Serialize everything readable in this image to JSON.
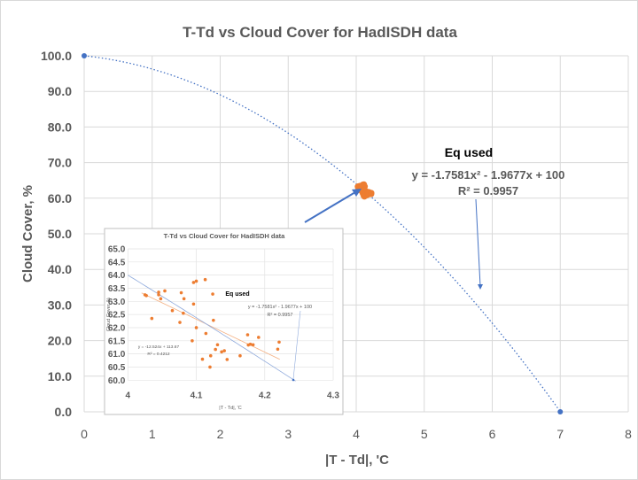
{
  "chart_data": [
    {
      "type": "scatter",
      "title": "T-Td vs Cloud Cover for HadISDH data",
      "xlabel": "|T - Td|, 'C",
      "ylabel": "Cloud Cover, %",
      "xlim": [
        0,
        8
      ],
      "ylim": [
        0,
        100
      ],
      "x_ticks": [
        "0",
        "1",
        "2",
        "3",
        "4",
        "5",
        "6",
        "7",
        "8"
      ],
      "y_ticks": [
        "0.0",
        "10.0",
        "20.0",
        "30.0",
        "40.0",
        "50.0",
        "60.0",
        "70.0",
        "80.0",
        "90.0",
        "100.0"
      ],
      "grid": true,
      "anchor_points": {
        "x": [
          0,
          7
        ],
        "y": [
          100,
          0
        ],
        "color": "#4472c4"
      },
      "trendline": {
        "type": "polynomial",
        "coefficients": [
          -1.7581,
          -1.9677,
          100
        ],
        "equation": "y = -1.7581x² - 1.9677x + 100",
        "r2": "R² = 0.9957",
        "color": "#4472c4",
        "style": "dotted"
      },
      "annotation": "Eq used",
      "point_color": "#ed7d31"
    },
    {
      "type": "scatter",
      "title": "T-Td vs Cloud Cover for HadISDH data",
      "xlabel": "|T - Td|, 'C",
      "ylabel": "Cloud Cover, %",
      "xlim": [
        4,
        4.3
      ],
      "ylim": [
        60,
        65
      ],
      "x_ticks": [
        "4",
        "4.1",
        "4.2",
        "4.3"
      ],
      "y_ticks": [
        "60.0",
        "60.5",
        "61.0",
        "61.5",
        "62.0",
        "62.5",
        "63.0",
        "63.5",
        "64.0",
        "64.5",
        "65.0"
      ],
      "grid": true,
      "annotation": "Eq used",
      "poly_equation": "y = -1.7581x² - 1.9677x + 100",
      "poly_r2": "R² = 0.9957",
      "linear_trendline": {
        "slope": -12.524,
        "intercept": 113.67,
        "equation": "y = -12.524x + 113.67",
        "r2": "R² = 0.4212",
        "color": "#f4b183"
      },
      "point_color": "#ed7d31",
      "points": {
        "x": [
          4.025,
          4.027,
          4.035,
          4.045,
          4.045,
          4.048,
          4.054,
          4.065,
          4.076,
          4.078,
          4.081,
          4.082,
          4.094,
          4.096,
          4.096,
          4.1,
          4.1,
          4.113,
          4.114,
          4.109,
          4.12,
          4.121,
          4.124,
          4.125,
          4.128,
          4.131,
          4.137,
          4.141,
          4.145,
          4.164,
          4.175,
          4.176,
          4.179,
          4.183,
          4.191,
          4.219,
          4.221
        ],
        "y": [
          63.25,
          63.22,
          62.35,
          63.35,
          63.25,
          63.1,
          63.4,
          62.65,
          62.2,
          63.33,
          62.55,
          63.1,
          61.5,
          62.9,
          63.72,
          63.77,
          62.0,
          63.83,
          61.78,
          60.8,
          60.5,
          60.93,
          63.28,
          62.28,
          61.17,
          61.35,
          61.08,
          61.12,
          60.79,
          60.93,
          61.73,
          61.34,
          61.37,
          61.35,
          61.63,
          61.18,
          61.45
        ]
      }
    }
  ]
}
